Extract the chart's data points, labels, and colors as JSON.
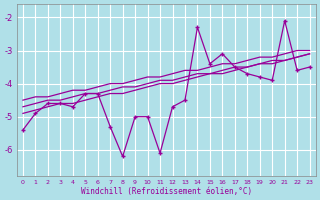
{
  "xlabel": "Windchill (Refroidissement éolien,°C)",
  "x": [
    0,
    1,
    2,
    3,
    4,
    5,
    6,
    7,
    8,
    9,
    10,
    11,
    12,
    13,
    14,
    15,
    16,
    17,
    18,
    19,
    20,
    21,
    22,
    23
  ],
  "y": [
    -5.4,
    -4.9,
    -4.6,
    -4.6,
    -4.7,
    -4.3,
    -4.3,
    -5.3,
    -6.2,
    -5.0,
    -5.0,
    -6.1,
    -4.7,
    -4.5,
    -2.3,
    -3.4,
    -3.1,
    -3.5,
    -3.7,
    -3.8,
    -3.9,
    -2.1,
    -3.6,
    -3.5
  ],
  "reg1": [
    -4.7,
    -4.6,
    -4.5,
    -4.5,
    -4.4,
    -4.3,
    -4.3,
    -4.2,
    -4.1,
    -4.1,
    -4.0,
    -3.9,
    -3.9,
    -3.8,
    -3.7,
    -3.7,
    -3.6,
    -3.5,
    -3.5,
    -3.4,
    -3.3,
    -3.3,
    -3.2,
    -3.1
  ],
  "reg2": [
    -4.9,
    -4.8,
    -4.7,
    -4.6,
    -4.6,
    -4.5,
    -4.4,
    -4.3,
    -4.3,
    -4.2,
    -4.1,
    -4.0,
    -4.0,
    -3.9,
    -3.8,
    -3.7,
    -3.7,
    -3.6,
    -3.5,
    -3.4,
    -3.4,
    -3.3,
    -3.2,
    -3.1
  ],
  "reg3": [
    -4.5,
    -4.4,
    -4.4,
    -4.3,
    -4.2,
    -4.2,
    -4.1,
    -4.0,
    -4.0,
    -3.9,
    -3.8,
    -3.8,
    -3.7,
    -3.6,
    -3.6,
    -3.5,
    -3.4,
    -3.4,
    -3.3,
    -3.2,
    -3.2,
    -3.1,
    -3.0,
    -3.0
  ],
  "line_color": "#990099",
  "bg_color": "#b0e0e8",
  "grid_color": "#ffffff",
  "ylim": [
    -6.8,
    -1.6
  ],
  "yticks": [
    -6,
    -5,
    -4,
    -3,
    -2
  ],
  "xlim": [
    -0.5,
    23.5
  ]
}
